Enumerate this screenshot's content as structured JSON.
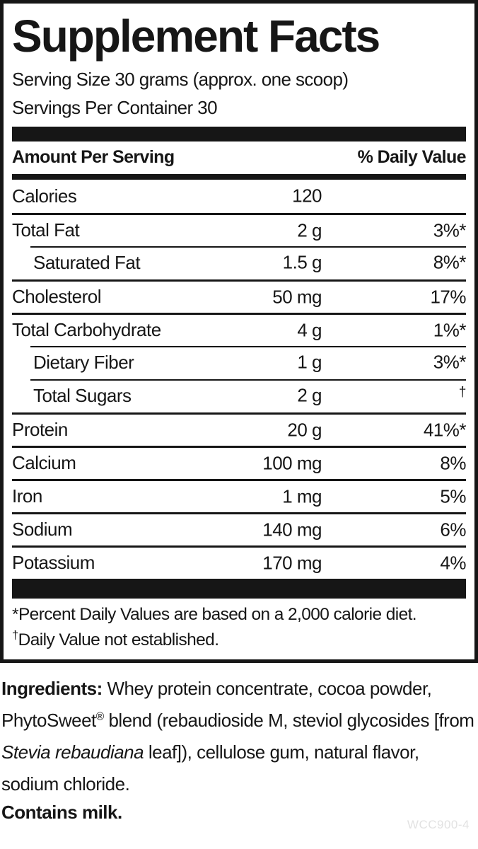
{
  "panel": {
    "title": "Supplement Facts",
    "serving_size": "Serving Size 30 grams (approx. one scoop)",
    "servings_per_container": "Servings Per Container 30",
    "header": {
      "amount_label": "Amount Per Serving",
      "dv_label": "% Daily Value"
    },
    "rows": [
      {
        "name": "Calories",
        "amount": "120",
        "dv": "",
        "indent": false,
        "sep": "none",
        "dv_dagger": false
      },
      {
        "name": "Total Fat",
        "amount": "2 g",
        "dv": "3%*",
        "indent": false,
        "sep": "full",
        "dv_dagger": false
      },
      {
        "name": "Saturated Fat",
        "amount": "1.5 g",
        "dv": "8%*",
        "indent": true,
        "sep": "indent",
        "dv_dagger": false
      },
      {
        "name": "Cholesterol",
        "amount": "50 mg",
        "dv": "17%",
        "indent": false,
        "sep": "full",
        "dv_dagger": false
      },
      {
        "name": "Total Carbohydrate",
        "amount": "4 g",
        "dv": "1%*",
        "indent": false,
        "sep": "full",
        "dv_dagger": false
      },
      {
        "name": "Dietary Fiber",
        "amount": "1 g",
        "dv": "3%*",
        "indent": true,
        "sep": "indent",
        "dv_dagger": false
      },
      {
        "name": "Total Sugars",
        "amount": "2 g",
        "dv": "†",
        "indent": true,
        "sep": "indent",
        "dv_dagger": true
      },
      {
        "name": "Protein",
        "amount": "20 g",
        "dv": "41%*",
        "indent": false,
        "sep": "full",
        "dv_dagger": false
      },
      {
        "name": "Calcium",
        "amount": "100 mg",
        "dv": "8%",
        "indent": false,
        "sep": "full",
        "dv_dagger": false
      },
      {
        "name": "Iron",
        "amount": "1 mg",
        "dv": "5%",
        "indent": false,
        "sep": "full",
        "dv_dagger": false
      },
      {
        "name": "Sodium",
        "amount": "140 mg",
        "dv": "6%",
        "indent": false,
        "sep": "full",
        "dv_dagger": false
      },
      {
        "name": "Potassium",
        "amount": "170 mg",
        "dv": "4%",
        "indent": false,
        "sep": "full",
        "dv_dagger": false
      }
    ],
    "footnotes": [
      {
        "prefix": "*",
        "prefix_sup": false,
        "text": "Percent Daily Values are based on a 2,000 calorie diet."
      },
      {
        "prefix": "†",
        "prefix_sup": true,
        "text": "Daily Value not established."
      }
    ]
  },
  "ingredients": {
    "segments": [
      {
        "text": "Ingredients: ",
        "style": "bold"
      },
      {
        "text": "Whey protein concentrate, cocoa powder, PhytoSweet",
        "style": "normal"
      },
      {
        "text": "®",
        "style": "sup"
      },
      {
        "text": " blend (rebaudioside M, steviol glycosides [from ",
        "style": "normal"
      },
      {
        "text": "Stevia rebaudiana",
        "style": "italic"
      },
      {
        "text": " leaf]), cellulose gum, natural flavor, sodium chloride.",
        "style": "normal"
      }
    ]
  },
  "contains": "Contains milk.",
  "product_code": "WCC900-4",
  "colors": {
    "ink": "#161616",
    "background": "#ffffff",
    "code_gray": "#e2e2e2"
  }
}
